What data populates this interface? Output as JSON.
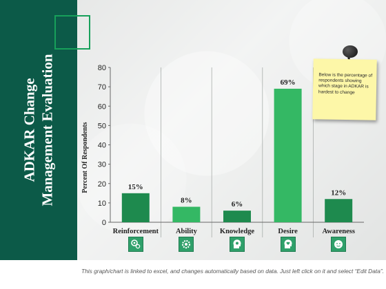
{
  "slide": {
    "title_line1": "ADKAR Change",
    "title_line2": "Management Evaluation",
    "note": "Below is the percentage of respondents showing which stage in ADKAR is hardest to change",
    "footer": "This graph/chart is linked to excel, and changes automatically based on data. Just left click on it and select “Edit Data”."
  },
  "chart_data": {
    "type": "bar",
    "categories": [
      "Reinforcement",
      "Ability",
      "Knowledge",
      "Desire",
      "Awareness"
    ],
    "values": [
      15,
      8,
      6,
      69,
      12
    ],
    "data_labels": [
      "15%",
      "8%",
      "6%",
      "69%",
      "12%"
    ],
    "ylabel": "Percent Of Respondents",
    "xlabel": "",
    "ylim": [
      0,
      80
    ],
    "yticks": [
      0,
      10,
      20,
      30,
      40,
      50,
      60,
      70,
      80
    ],
    "grid": false,
    "bar_colors": [
      "#1e8a4e",
      "#34b864",
      "#1e8a4e",
      "#34b864",
      "#1e8a4e"
    ]
  },
  "icons": [
    {
      "category": "Reinforcement",
      "icon": "gears-icon"
    },
    {
      "category": "Ability",
      "icon": "gear-icon"
    },
    {
      "category": "Knowledge",
      "icon": "head-gear-icon"
    },
    {
      "category": "Desire",
      "icon": "head-heart-icon"
    },
    {
      "category": "Awareness",
      "icon": "face-icon"
    }
  ],
  "colors": {
    "sidebar": "#0c5a48",
    "accent": "#17a05a"
  }
}
